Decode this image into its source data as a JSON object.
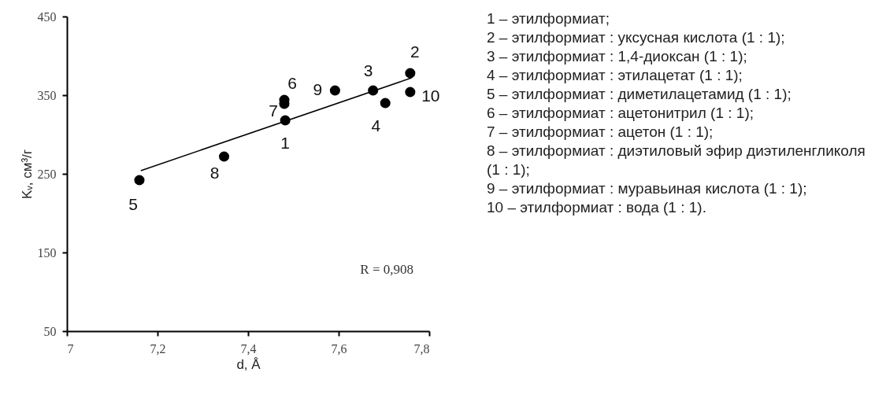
{
  "chart_data": {
    "type": "scatter",
    "xlabel": "d, Å",
    "ylabel": "Kᵥ, см³/г",
    "series": [
      {
        "color": "#000000",
        "marker": "circle",
        "x": [
          7.482,
          7.758,
          7.676,
          7.703,
          7.16,
          7.48,
          7.48,
          7.347,
          7.592,
          7.758
        ],
        "values": [
          318,
          378,
          356,
          340,
          242,
          344,
          339,
          272,
          356,
          354
        ]
      },
      {
        "type": "line",
        "color": "#000000",
        "x": [
          7.163,
          7.761
        ],
        "values": [
          254,
          372
        ]
      }
    ],
    "xlim": [
      7,
      7.8
    ],
    "xticks": [
      7,
      {
        "value": 7.2,
        "label": "7,2"
      },
      {
        "value": 7.4,
        "label": "7,4"
      },
      {
        "value": 7.6,
        "label": "7,6"
      },
      {
        "value": 7.8,
        "label": "7,8"
      }
    ],
    "ylim": [
      50,
      450
    ],
    "yticks": [
      50,
      150,
      250,
      350,
      450
    ],
    "grid": false,
    "annotations": [
      {
        "text": "1",
        "x": 7.482,
        "y": 318
      },
      {
        "text": "2",
        "x": 7.758,
        "y": 378
      },
      {
        "text": "3",
        "x": 7.676,
        "y": 356
      },
      {
        "text": "4",
        "x": 7.703,
        "y": 340
      },
      {
        "text": "5",
        "x": 7.16,
        "y": 242
      },
      {
        "text": "6",
        "x": 7.48,
        "y": 344
      },
      {
        "text": "7",
        "x": 7.48,
        "y": 339
      },
      {
        "text": "8",
        "x": 7.347,
        "y": 272
      },
      {
        "text": "9",
        "x": 7.592,
        "y": 356
      },
      {
        "text": "10",
        "x": 7.758,
        "y": 354
      },
      "R = 0,908",
      "1 – этилформиат;",
      "2 – этилформиат : уксусная кислота (1 : 1);",
      "3 – этилформиат : 1,4-диоксан (1 : 1);",
      "4 – этилформиат : этилацетат (1 : 1);",
      "5 – этилформиат : диметилацетамид (1 : 1);",
      "6 – этилформиат : ацетонитрил (1 : 1);",
      "7 – этилформиат : ацетон (1 : 1);",
      "8 – этилформиат : диэтиловый эфир диэтиленгликоля (1 : 1);",
      "9 – этилформиат : муравьиная кислота (1 : 1);",
      "10 – этилформиат : вода (1 : 1)."
    ]
  }
}
